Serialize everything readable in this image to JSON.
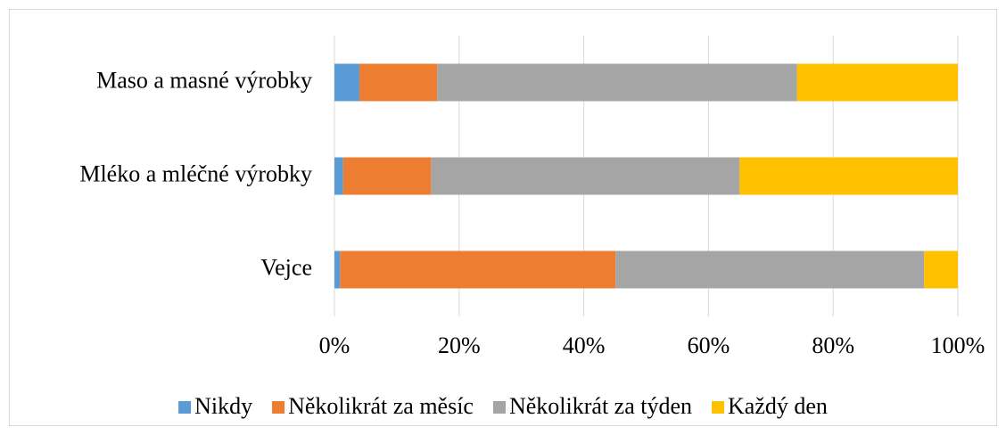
{
  "chart_data": {
    "type": "stacked-bar-horizontal",
    "categories": [
      "Vejce",
      "Mléko a mléčné výrobky",
      "Maso a masné výrobky"
    ],
    "series": [
      {
        "name": "Nikdy",
        "color": "#5b9bd5",
        "values": [
          0.9,
          1.4,
          4.0
        ]
      },
      {
        "name": "Několikrát za měsíc",
        "color": "#ed7d31",
        "values": [
          44.2,
          14.1,
          12.5
        ]
      },
      {
        "name": "Několikrát za týden",
        "color": "#a5a5a5",
        "values": [
          49.5,
          49.5,
          57.7
        ]
      },
      {
        "name": "Každý den",
        "color": "#ffc000",
        "values": [
          5.4,
          35.0,
          25.8
        ]
      }
    ],
    "xlim": [
      0,
      100
    ],
    "xticks": [
      {
        "value": 0,
        "label": "0%"
      },
      {
        "value": 20,
        "label": "20%"
      },
      {
        "value": 40,
        "label": "40%"
      },
      {
        "value": 60,
        "label": "60%"
      },
      {
        "value": 80,
        "label": "80%"
      },
      {
        "value": 100,
        "label": "100%"
      }
    ],
    "grid": true,
    "legend": "bottom"
  }
}
